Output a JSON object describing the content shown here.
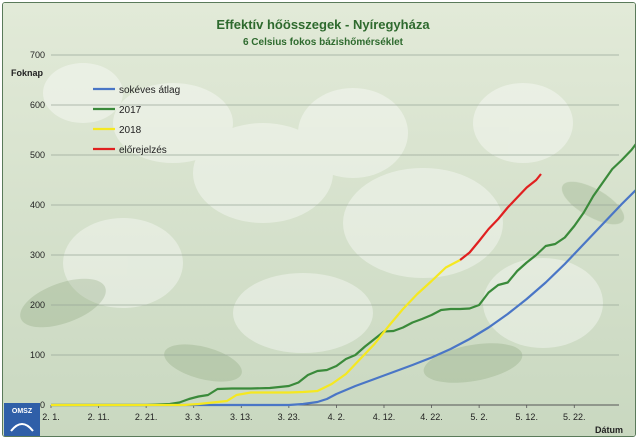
{
  "chart_data": {
    "type": "line",
    "title": "Effektív hőösszegek - Nyíregyháza",
    "subtitle": "6 Celsius fokos bázishőmérséklet",
    "ylabel": "Foknap",
    "xlabel": "Dátum",
    "ylim": [
      0,
      700
    ],
    "yticks": [
      "0",
      "100",
      "200",
      "300",
      "400",
      "500",
      "600",
      "700"
    ],
    "xticks": [
      "2. 1.",
      "2. 11.",
      "2. 21.",
      "3. 3.",
      "3. 13.",
      "3. 23.",
      "4. 2.",
      "4. 12.",
      "4. 22.",
      "5. 2.",
      "5. 12.",
      "5. 22."
    ],
    "xlim_days": [
      0,
      116
    ],
    "grid": true,
    "legend_position": "top-left",
    "series": [
      {
        "name": "sokéves átlag",
        "color": "#4a76c6",
        "points": [
          [
            0,
            0
          ],
          [
            50,
            0
          ],
          [
            53,
            2
          ],
          [
            56,
            6
          ],
          [
            58,
            12
          ],
          [
            60,
            22
          ],
          [
            64,
            38
          ],
          [
            68,
            52
          ],
          [
            72,
            66
          ],
          [
            76,
            80
          ],
          [
            80,
            95
          ],
          [
            84,
            112
          ],
          [
            88,
            132
          ],
          [
            92,
            155
          ],
          [
            96,
            182
          ],
          [
            100,
            212
          ],
          [
            104,
            245
          ],
          [
            108,
            282
          ],
          [
            112,
            322
          ],
          [
            116,
            362
          ],
          [
            120,
            402
          ],
          [
            124,
            440
          ],
          [
            127,
            473
          ]
        ]
      },
      {
        "name": "2017",
        "color": "#3a8a3a",
        "points": [
          [
            0,
            0
          ],
          [
            20,
            0
          ],
          [
            25,
            2
          ],
          [
            27,
            5
          ],
          [
            29,
            12
          ],
          [
            31,
            17
          ],
          [
            33,
            20
          ],
          [
            35,
            32
          ],
          [
            38,
            33
          ],
          [
            42,
            33
          ],
          [
            46,
            34
          ],
          [
            50,
            38
          ],
          [
            52,
            45
          ],
          [
            54,
            60
          ],
          [
            56,
            68
          ],
          [
            58,
            70
          ],
          [
            60,
            78
          ],
          [
            62,
            92
          ],
          [
            64,
            100
          ],
          [
            66,
            117
          ],
          [
            68,
            132
          ],
          [
            70,
            147
          ],
          [
            72,
            148
          ],
          [
            74,
            155
          ],
          [
            76,
            165
          ],
          [
            78,
            172
          ],
          [
            80,
            180
          ],
          [
            82,
            190
          ],
          [
            84,
            192
          ],
          [
            86,
            192
          ],
          [
            88,
            193
          ],
          [
            90,
            200
          ],
          [
            92,
            225
          ],
          [
            94,
            240
          ],
          [
            96,
            245
          ],
          [
            98,
            268
          ],
          [
            100,
            285
          ],
          [
            102,
            300
          ],
          [
            104,
            318
          ],
          [
            106,
            322
          ],
          [
            108,
            335
          ],
          [
            110,
            358
          ],
          [
            112,
            385
          ],
          [
            114,
            418
          ],
          [
            116,
            445
          ],
          [
            118,
            472
          ],
          [
            120,
            490
          ],
          [
            122,
            510
          ],
          [
            124,
            535
          ],
          [
            126,
            570
          ]
        ]
      },
      {
        "name": "2018",
        "color": "#f5e820",
        "points": [
          [
            0,
            0
          ],
          [
            28,
            0
          ],
          [
            31,
            2
          ],
          [
            34,
            5
          ],
          [
            37,
            8
          ],
          [
            39,
            20
          ],
          [
            42,
            25
          ],
          [
            46,
            25
          ],
          [
            50,
            25
          ],
          [
            53,
            26
          ],
          [
            56,
            28
          ],
          [
            59,
            42
          ],
          [
            62,
            62
          ],
          [
            65,
            92
          ],
          [
            68,
            122
          ],
          [
            71,
            158
          ],
          [
            74,
            192
          ],
          [
            77,
            222
          ],
          [
            80,
            248
          ],
          [
            83,
            275
          ],
          [
            86,
            290
          ]
        ]
      },
      {
        "name": "előrejelzés",
        "color": "#e02020",
        "points": [
          [
            86,
            290
          ],
          [
            88,
            305
          ],
          [
            90,
            328
          ],
          [
            92,
            352
          ],
          [
            94,
            372
          ],
          [
            96,
            395
          ],
          [
            98,
            415
          ],
          [
            100,
            435
          ],
          [
            102,
            450
          ],
          [
            103,
            462
          ]
        ]
      }
    ]
  },
  "logo": {
    "text": "OMSZ"
  }
}
